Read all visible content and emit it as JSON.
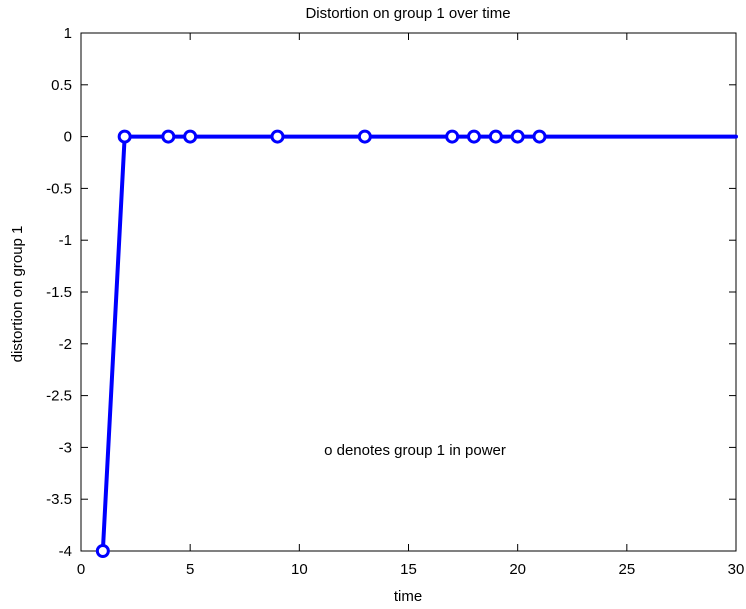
{
  "chart_data": {
    "type": "line",
    "title": "Distortion on group 1 over time",
    "xlabel": "time",
    "ylabel": "distortion on group 1",
    "xlim": [
      0,
      30
    ],
    "ylim": [
      -4,
      1
    ],
    "xticks": [
      0,
      5,
      10,
      15,
      20,
      25,
      30
    ],
    "yticks": [
      1,
      0.5,
      0,
      -0.5,
      -1,
      -1.5,
      -2,
      -2.5,
      -3,
      -3.5,
      -4
    ],
    "xtick_labels": [
      "0",
      "5",
      "10",
      "15",
      "20",
      "25",
      "30"
    ],
    "ytick_labels": [
      "1",
      "0.5",
      "0",
      "-0.5",
      "-1",
      "-1.5",
      "-2",
      "-2.5",
      "-3",
      "-3.5",
      "-4"
    ],
    "grid": false,
    "series": [
      {
        "color": "#0000ff",
        "line_x": [
          1,
          2,
          3,
          4,
          5,
          6,
          7,
          8,
          9,
          10,
          11,
          12,
          13,
          14,
          15,
          16,
          17,
          18,
          19,
          20,
          21,
          22,
          23,
          24,
          25,
          26,
          27,
          28,
          29,
          30
        ],
        "line_y": [
          -4,
          0,
          0,
          0,
          0,
          0,
          0,
          0,
          0,
          0,
          0,
          0,
          0,
          0,
          0,
          0,
          0,
          0,
          0,
          0,
          0,
          0,
          0,
          0,
          0,
          0,
          0,
          0,
          0,
          0
        ],
        "marker_x": [
          1,
          2,
          4,
          5,
          9,
          13,
          17,
          18,
          19,
          20,
          21
        ],
        "marker_y": [
          -4,
          0,
          0,
          0,
          0,
          0,
          0,
          0,
          0,
          0,
          0
        ]
      }
    ],
    "annotation": "o denotes group 1 in power"
  }
}
